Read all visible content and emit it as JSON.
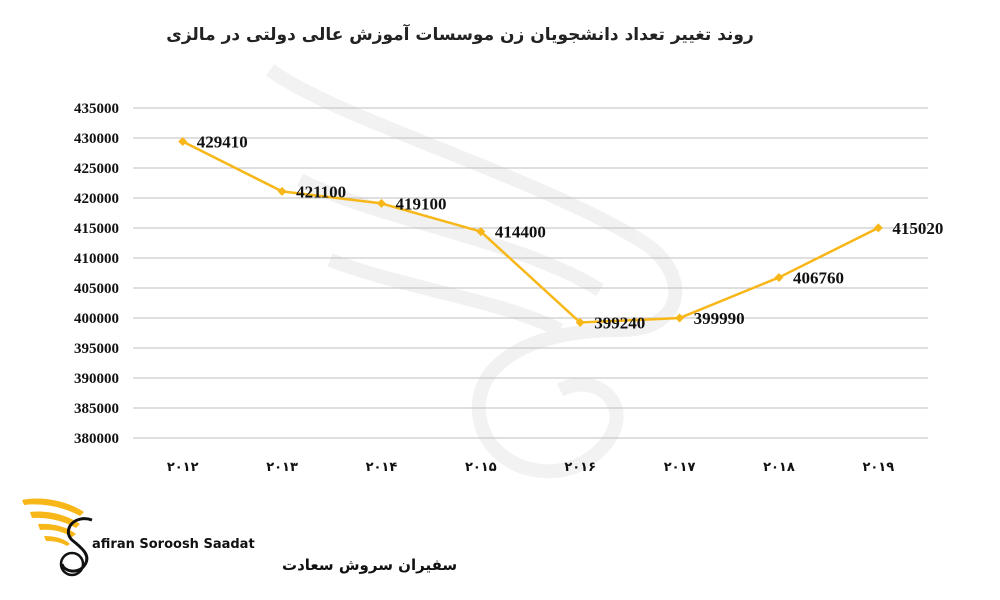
{
  "chart_data": {
    "type": "line",
    "title": "روند تغییر تعداد دانشجویان زن موسسات آموزش عالی دولتی در مالزی",
    "xlabel": "",
    "ylabel": "",
    "categories": [
      "۲۰۱۲",
      "۲۰۱۳",
      "۲۰۱۴",
      "۲۰۱۵",
      "۲۰۱۶",
      "۲۰۱۷",
      "۲۰۱۸",
      "۲۰۱۹"
    ],
    "series": [
      {
        "values": [
          429410,
          421100,
          419100,
          414400,
          399240,
          399990,
          406760,
          415020
        ]
      }
    ],
    "data_labels": [
      "429410",
      "421100",
      "419100",
      "414400",
      "399240",
      "399990",
      "406760",
      "415020"
    ],
    "ylim": [
      380000,
      435000
    ],
    "yticks": [
      380000,
      385000,
      390000,
      395000,
      400000,
      405000,
      410000,
      415000,
      420000,
      425000,
      430000,
      435000
    ],
    "ytick_labels": [
      "380000",
      "385000",
      "390000",
      "395000",
      "400000",
      "405000",
      "410000",
      "415000",
      "420000",
      "425000",
      "430000",
      "435000"
    ],
    "grid": true,
    "legend": "none",
    "line_color": "#F7B718",
    "marker_color": "#F7B718",
    "grid_color": "#BFBFBF"
  },
  "logo": {
    "name_en": "afiran Soroosh Saadat",
    "name_fa": "سفیران سروش سعادت",
    "accent_color": "#F7B718",
    "icon": "wing-s-logo-icon"
  }
}
